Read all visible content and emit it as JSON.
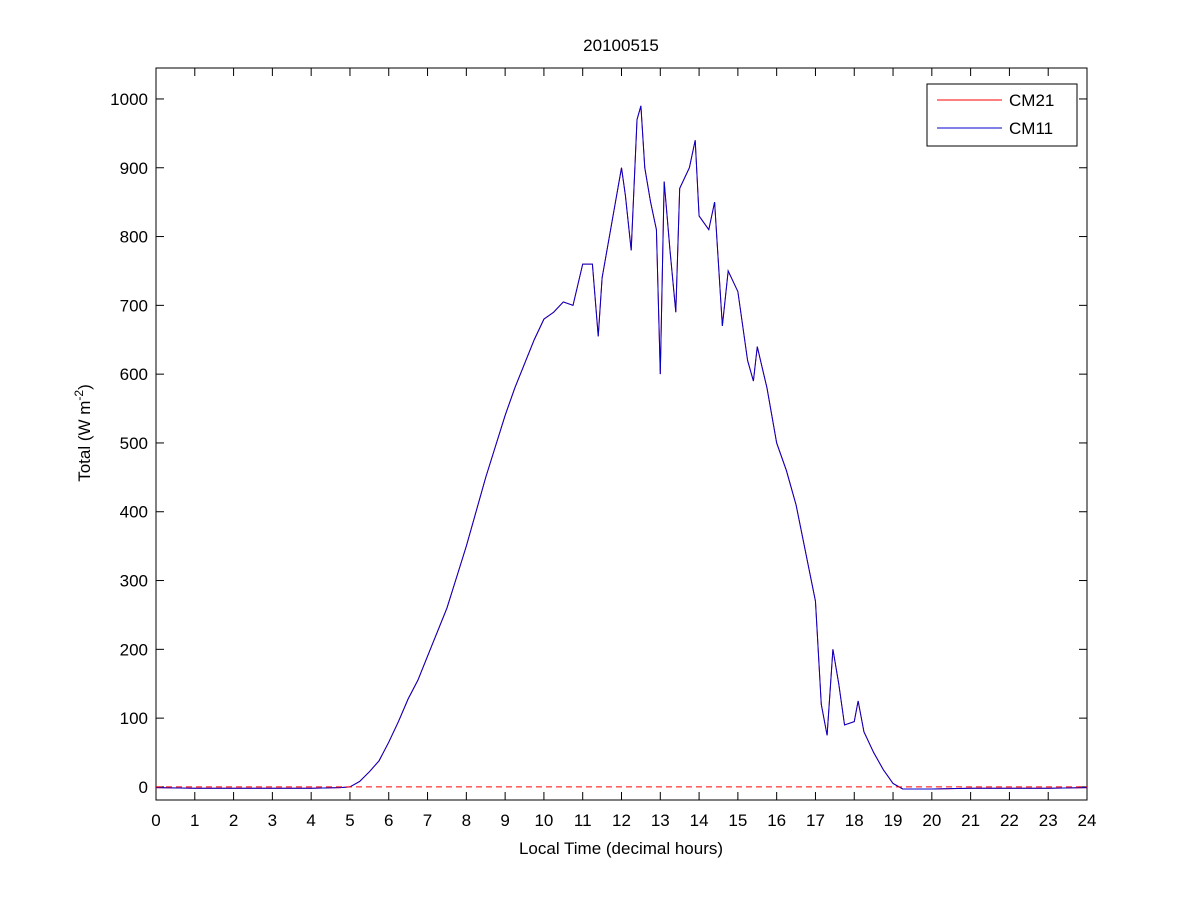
{
  "chart_data": {
    "type": "line",
    "title": "20100515",
    "xlabel": "Local Time (decimal hours)",
    "ylabel": [
      "Total (W m",
      "-2",
      ")"
    ],
    "x": [
      0,
      1,
      2,
      3,
      4,
      4.75,
      5,
      5.25,
      5.5,
      5.75,
      6,
      6.25,
      6.5,
      6.75,
      7,
      7.25,
      7.5,
      7.75,
      8,
      8.25,
      8.5,
      8.75,
      9,
      9.25,
      9.5,
      9.75,
      10,
      10.25,
      10.5,
      10.75,
      11,
      11.25,
      11.4,
      11.5,
      11.75,
      12,
      12.1,
      12.25,
      12.4,
      12.5,
      12.6,
      12.75,
      12.9,
      13,
      13.1,
      13.25,
      13.4,
      13.5,
      13.75,
      13.9,
      14,
      14.25,
      14.4,
      14.6,
      14.75,
      15,
      15.25,
      15.4,
      15.5,
      15.75,
      16,
      16.25,
      16.5,
      16.75,
      17,
      17.15,
      17.3,
      17.45,
      17.6,
      17.75,
      18,
      18.1,
      18.25,
      18.5,
      18.75,
      19,
      19.25,
      19.5,
      20,
      21,
      22,
      23,
      24
    ],
    "series": [
      {
        "name": "CM21",
        "color": "#ff0000",
        "values": [
          -1,
          -2,
          -2,
          -2,
          -2,
          -1,
          0,
          8,
          22,
          38,
          65,
          95,
          128,
          155,
          190,
          225,
          260,
          305,
          350,
          400,
          450,
          495,
          540,
          580,
          615,
          650,
          680,
          690,
          705,
          700,
          760,
          760,
          655,
          740,
          820,
          900,
          860,
          780,
          970,
          990,
          900,
          850,
          810,
          600,
          880,
          780,
          690,
          870,
          900,
          940,
          830,
          810,
          850,
          670,
          750,
          720,
          620,
          590,
          640,
          580,
          500,
          460,
          410,
          340,
          270,
          120,
          75,
          200,
          150,
          90,
          95,
          125,
          80,
          50,
          25,
          5,
          -3,
          -3,
          -3,
          -2,
          -2,
          -2,
          -1
        ]
      },
      {
        "name": "CM11",
        "color": "#0000cc",
        "values": [
          -1,
          -2,
          -2,
          -2,
          -2,
          -1,
          0,
          8,
          22,
          38,
          65,
          95,
          128,
          155,
          190,
          225,
          260,
          305,
          350,
          400,
          450,
          495,
          540,
          580,
          615,
          650,
          680,
          690,
          705,
          700,
          760,
          760,
          655,
          740,
          820,
          900,
          860,
          780,
          970,
          990,
          900,
          850,
          810,
          600,
          880,
          780,
          690,
          870,
          900,
          940,
          830,
          810,
          850,
          670,
          750,
          720,
          620,
          590,
          640,
          580,
          500,
          460,
          410,
          340,
          270,
          120,
          75,
          200,
          150,
          90,
          95,
          125,
          80,
          50,
          25,
          5,
          -3,
          -3,
          -3,
          -2,
          -2,
          -2,
          -1
        ]
      }
    ],
    "reference_line": {
      "value": 0,
      "color": "#ff0000",
      "style": "dashed"
    },
    "xlim": [
      0,
      24
    ],
    "xticks": [
      0,
      1,
      2,
      3,
      4,
      5,
      6,
      7,
      8,
      9,
      10,
      11,
      12,
      13,
      14,
      15,
      16,
      17,
      18,
      19,
      20,
      21,
      22,
      23,
      24
    ],
    "ylim": [
      -19,
      1045
    ],
    "yticks": [
      0,
      100,
      200,
      300,
      400,
      500,
      600,
      700,
      800,
      900,
      1000
    ],
    "legend": "top-right"
  }
}
